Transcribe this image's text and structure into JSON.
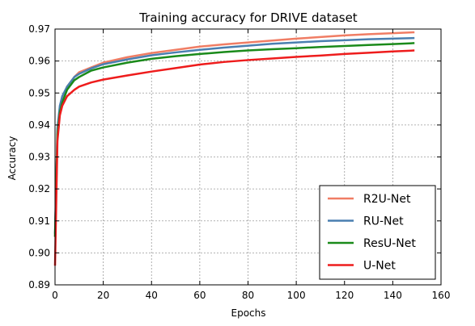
{
  "chart_data": {
    "type": "line",
    "title": "Training accuracy for DRIVE dataset",
    "xlabel": "Epochs",
    "ylabel": "Accuracy",
    "xlim": [
      0,
      160
    ],
    "ylim": [
      0.89,
      0.97
    ],
    "xticks": [
      0,
      20,
      40,
      60,
      80,
      100,
      120,
      140,
      160
    ],
    "yticks": [
      0.89,
      0.9,
      0.91,
      0.92,
      0.93,
      0.94,
      0.95,
      0.96,
      0.97
    ],
    "grid": true,
    "legend_position": "bottom-right",
    "series": [
      {
        "name": "R2U-Net",
        "color": "#f07d64",
        "points": [
          [
            0,
            0.905
          ],
          [
            1,
            0.938
          ],
          [
            2,
            0.945
          ],
          [
            3,
            0.948
          ],
          [
            5,
            0.952
          ],
          [
            8,
            0.955
          ],
          [
            10,
            0.9565
          ],
          [
            15,
            0.958
          ],
          [
            20,
            0.9595
          ],
          [
            30,
            0.9612
          ],
          [
            40,
            0.9625
          ],
          [
            50,
            0.9635
          ],
          [
            60,
            0.9645
          ],
          [
            70,
            0.9652
          ],
          [
            80,
            0.9658
          ],
          [
            90,
            0.9664
          ],
          [
            100,
            0.967
          ],
          [
            110,
            0.9675
          ],
          [
            120,
            0.968
          ],
          [
            130,
            0.9684
          ],
          [
            140,
            0.9687
          ],
          [
            149,
            0.969
          ]
        ]
      },
      {
        "name": "RU-Net",
        "color": "#4a7fb0",
        "points": [
          [
            0,
            0.906
          ],
          [
            1,
            0.939
          ],
          [
            2,
            0.946
          ],
          [
            3,
            0.949
          ],
          [
            5,
            0.952
          ],
          [
            8,
            0.955
          ],
          [
            10,
            0.956
          ],
          [
            15,
            0.9577
          ],
          [
            20,
            0.959
          ],
          [
            30,
            0.9605
          ],
          [
            40,
            0.9618
          ],
          [
            50,
            0.9627
          ],
          [
            60,
            0.9635
          ],
          [
            70,
            0.9642
          ],
          [
            80,
            0.9648
          ],
          [
            90,
            0.9654
          ],
          [
            100,
            0.9658
          ],
          [
            110,
            0.9662
          ],
          [
            120,
            0.9665
          ],
          [
            130,
            0.9668
          ],
          [
            140,
            0.967
          ],
          [
            149,
            0.9672
          ]
        ]
      },
      {
        "name": "ResU-Net",
        "color": "#1a8a1a",
        "points": [
          [
            0,
            0.905
          ],
          [
            1,
            0.937
          ],
          [
            2,
            0.944
          ],
          [
            3,
            0.947
          ],
          [
            5,
            0.951
          ],
          [
            8,
            0.954
          ],
          [
            10,
            0.955
          ],
          [
            15,
            0.957
          ],
          [
            20,
            0.958
          ],
          [
            30,
            0.9595
          ],
          [
            40,
            0.9607
          ],
          [
            50,
            0.9615
          ],
          [
            60,
            0.9622
          ],
          [
            70,
            0.9628
          ],
          [
            80,
            0.9633
          ],
          [
            90,
            0.9637
          ],
          [
            100,
            0.964
          ],
          [
            110,
            0.9644
          ],
          [
            120,
            0.9647
          ],
          [
            130,
            0.965
          ],
          [
            140,
            0.9653
          ],
          [
            149,
            0.9656
          ]
        ]
      },
      {
        "name": "U-Net",
        "color": "#ee1c1c",
        "points": [
          [
            0,
            0.896
          ],
          [
            1,
            0.935
          ],
          [
            2,
            0.943
          ],
          [
            3,
            0.946
          ],
          [
            5,
            0.949
          ],
          [
            8,
            0.951
          ],
          [
            10,
            0.952
          ],
          [
            15,
            0.9533
          ],
          [
            20,
            0.9542
          ],
          [
            30,
            0.9555
          ],
          [
            40,
            0.9567
          ],
          [
            50,
            0.9578
          ],
          [
            60,
            0.9589
          ],
          [
            70,
            0.9597
          ],
          [
            80,
            0.9603
          ],
          [
            90,
            0.9608
          ],
          [
            100,
            0.9613
          ],
          [
            110,
            0.9617
          ],
          [
            120,
            0.9622
          ],
          [
            130,
            0.9626
          ],
          [
            140,
            0.963
          ],
          [
            149,
            0.9633
          ]
        ]
      }
    ]
  }
}
